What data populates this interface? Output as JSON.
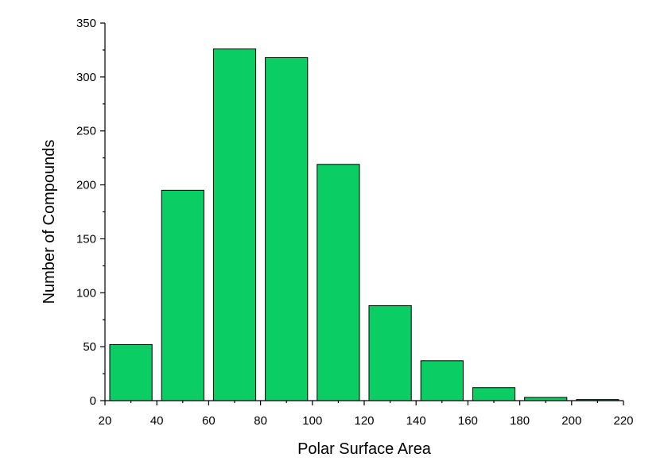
{
  "chart_data": {
    "type": "bar",
    "title": "",
    "xlabel": "Polar Surface Area",
    "ylabel": "Number of Compounds",
    "bins": [
      {
        "x0": 20,
        "x1": 40,
        "value": 52
      },
      {
        "x0": 40,
        "x1": 60,
        "value": 195
      },
      {
        "x0": 60,
        "x1": 80,
        "value": 326
      },
      {
        "x0": 80,
        "x1": 100,
        "value": 318
      },
      {
        "x0": 100,
        "x1": 120,
        "value": 219
      },
      {
        "x0": 120,
        "x1": 140,
        "value": 88
      },
      {
        "x0": 140,
        "x1": 160,
        "value": 37
      },
      {
        "x0": 160,
        "x1": 180,
        "value": 12
      },
      {
        "x0": 180,
        "x1": 200,
        "value": 3
      },
      {
        "x0": 200,
        "x1": 220,
        "value": 1
      }
    ],
    "xlim": [
      20,
      220
    ],
    "ylim": [
      0,
      350
    ],
    "xticks": [
      "20",
      "40",
      "60",
      "80",
      "100",
      "120",
      "140",
      "160",
      "180",
      "200",
      "220"
    ],
    "yticks": [
      "0",
      "50",
      "100",
      "150",
      "200",
      "250",
      "300",
      "350"
    ],
    "bar_color": "#0acd63",
    "grid": false,
    "legend": "none"
  }
}
